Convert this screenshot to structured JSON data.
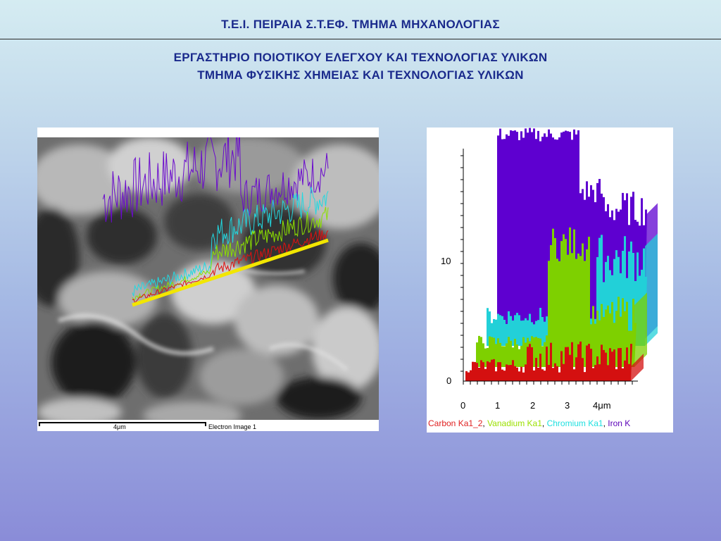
{
  "header": {
    "title": "Τ.Ε.Ι. ΠΕΙΡΑΙΑ Σ.Τ.ΕΦ. ΤΜΗΜΑ ΜΗΧΑΝΟΛΟΓΙΑΣ"
  },
  "subtitles": {
    "line1": "ΕΡΓΑΣΤΗΡΙΟ ΠΟΙΟΤΙΚΟΥ ΕΛΕΓΧΟΥ ΚΑΙ ΤΕΧΝΟΛΟΓΙΑΣ ΥΛΙΚΩΝ",
    "line2": "ΤΜΗΜΑ ΦΥΣΙΚΗΣ ΧΗΜΕΙΑΣ ΚΑΙ ΤΕΧΝΟΛΟΓΙΑΣ ΥΛΙΚΩΝ"
  },
  "sem_image": {
    "scale_label": "4μm",
    "caption": "Electron Image 1"
  },
  "linescan_chart": {
    "y_ticks": [
      "0",
      "10"
    ],
    "x_ticks": [
      "0",
      "1",
      "2",
      "3",
      "4μm"
    ],
    "legend": [
      {
        "label": "Carbon Ka1_2",
        "color": "#e02020"
      },
      {
        "label": "Vanadium Ka1",
        "color": "#9be000"
      },
      {
        "label": "Chromium Ka1",
        "color": "#20e0e0"
      },
      {
        "label": "Iron K",
        "color": "#5a00b8"
      }
    ],
    "separator": ", "
  },
  "colors": {
    "title": "#1a2a8c",
    "iron": "#6a0acd",
    "chromium": "#22d8e0",
    "vanadium": "#8ce000",
    "carbon": "#e01010",
    "scan_line": "#f2e600"
  }
}
